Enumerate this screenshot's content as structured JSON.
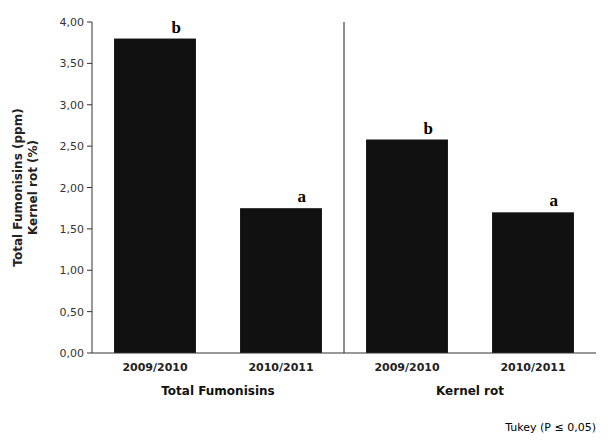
{
  "chart_data": {
    "type": "bar",
    "categories": [
      "2009/2010",
      "2010/2011",
      "2009/2010",
      "2010/2011"
    ],
    "values": [
      3.8,
      1.75,
      2.58,
      1.7
    ],
    "annotations": [
      "b",
      "a",
      "b",
      "a"
    ],
    "groups": [
      "Total Fumonisins",
      "Total Fumonisins",
      "Kernel rot",
      "Kernel rot"
    ],
    "color": "#111111",
    "y_label": "Total Fumonisins (ppm)\nKernel rot (%)",
    "ylim": [
      0.0,
      4.0
    ],
    "yticks": [
      {
        "value": 0.0,
        "label": "0,00"
      },
      {
        "value": 0.5,
        "label": "0,50"
      },
      {
        "value": 1.0,
        "label": "1,00"
      },
      {
        "value": 1.5,
        "label": "1,50"
      },
      {
        "value": 2.0,
        "label": "2,00"
      },
      {
        "value": 2.5,
        "label": "2,50"
      },
      {
        "value": 3.0,
        "label": "3,00"
      },
      {
        "value": 3.5,
        "label": "3,50"
      },
      {
        "value": 4.0,
        "label": "4,00"
      }
    ],
    "note": "Tukey (P ≤ 0,05)",
    "grid": false
  }
}
